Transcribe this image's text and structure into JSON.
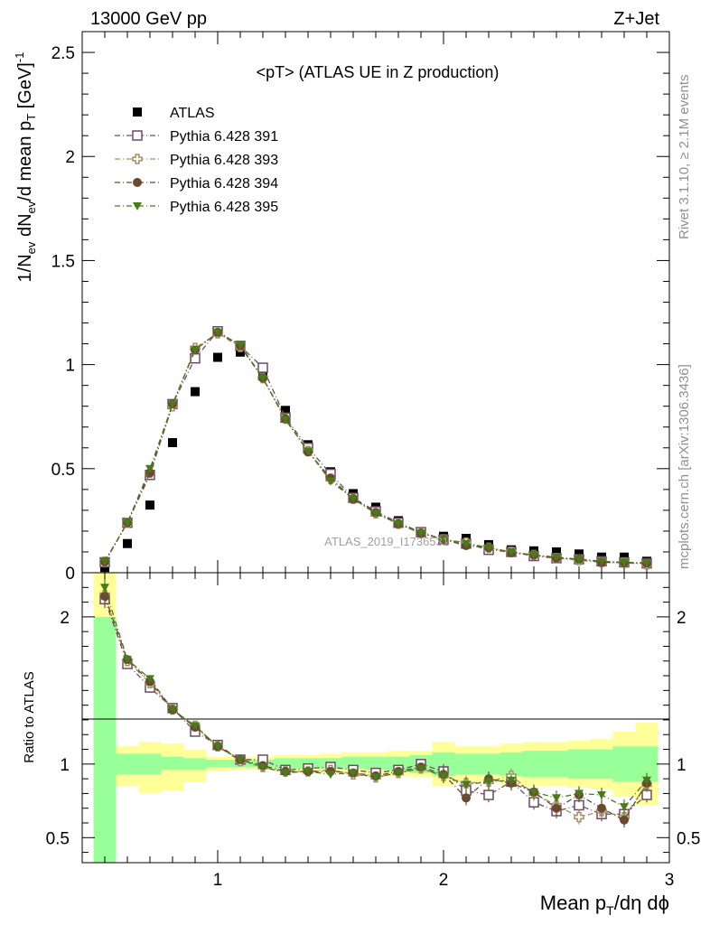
{
  "header": {
    "left": "13000 GeV pp",
    "right": "Z+Jet"
  },
  "side_labels": {
    "top": "Rivet 3.1.10, ≥ 2.1M events",
    "bottom": "mcplots.cern.ch [arXiv:1306.3436]"
  },
  "watermark": "ATLAS_2019_I1736531",
  "chart_data": [
    {
      "type": "scatter",
      "title": "<pT> (ATLAS UE in Z production)",
      "ylabel": "1/N_ev dN_ev/d mean p_T [GeV]^-1",
      "xlim": [
        0.4,
        3.0
      ],
      "ylim": [
        0,
        2.6
      ],
      "yticks": [
        "0",
        "0.5",
        "1",
        "1.5",
        "2",
        "2.5"
      ],
      "legend_position": "top-left",
      "x": [
        0.5,
        0.6,
        0.7,
        0.8,
        0.9,
        1.0,
        1.1,
        1.2,
        1.3,
        1.4,
        1.5,
        1.6,
        1.7,
        1.8,
        1.9,
        2.0,
        2.1,
        2.2,
        2.3,
        2.4,
        2.5,
        2.6,
        2.7,
        2.8,
        2.9
      ],
      "series": [
        {
          "name": "ATLAS",
          "marker": "square-filled",
          "color": "#000000",
          "values": [
            0.025,
            0.14,
            0.325,
            0.625,
            0.87,
            1.035,
            1.06,
            0.96,
            0.78,
            0.615,
            0.485,
            0.38,
            0.315,
            0.25,
            0.195,
            0.175,
            0.165,
            0.135,
            0.11,
            0.105,
            0.1,
            0.09,
            0.075,
            0.075,
            0.055
          ]
        },
        {
          "name": "Pythia 6.428 391",
          "marker": "square-open",
          "color": "#6e4a66",
          "values": [
            0.05,
            0.24,
            0.47,
            0.81,
            1.03,
            1.16,
            1.09,
            0.985,
            0.745,
            0.6,
            0.475,
            0.36,
            0.295,
            0.24,
            0.195,
            0.16,
            0.14,
            0.11,
            0.1,
            0.08,
            0.07,
            0.065,
            0.055,
            0.05,
            0.045
          ]
        },
        {
          "name": "Pythia 6.428 393",
          "marker": "cross-open",
          "color": "#a09060",
          "values": [
            0.053,
            0.24,
            0.48,
            0.8,
            1.08,
            1.15,
            1.085,
            0.935,
            0.74,
            0.585,
            0.45,
            0.355,
            0.285,
            0.235,
            0.19,
            0.16,
            0.145,
            0.12,
            0.1,
            0.085,
            0.07,
            0.06,
            0.05,
            0.048,
            0.04
          ]
        },
        {
          "name": "Pythia 6.428 394",
          "marker": "circle-filled",
          "color": "#6a4a2e",
          "values": [
            0.052,
            0.24,
            0.48,
            0.81,
            1.07,
            1.155,
            1.09,
            0.935,
            0.74,
            0.58,
            0.455,
            0.355,
            0.29,
            0.235,
            0.19,
            0.16,
            0.13,
            0.12,
            0.095,
            0.085,
            0.07,
            0.065,
            0.05,
            0.048,
            0.045
          ]
        },
        {
          "name": "Pythia 6.428 395",
          "marker": "triangle-down-filled",
          "color": "#4b7a1a",
          "values": [
            0.055,
            0.24,
            0.5,
            0.81,
            1.07,
            1.155,
            1.095,
            0.935,
            0.735,
            0.585,
            0.44,
            0.355,
            0.285,
            0.235,
            0.19,
            0.16,
            0.14,
            0.12,
            0.1,
            0.085,
            0.075,
            0.065,
            0.055,
            0.05,
            0.048
          ]
        }
      ]
    },
    {
      "type": "scatter",
      "title": "",
      "xlabel": "Mean p_T/dη dϕ",
      "ylabel": "Ratio to ATLAS",
      "xlim": [
        0.4,
        3.0
      ],
      "ylim": [
        0.33,
        2.3
      ],
      "xticks": [
        "1",
        "2",
        "3"
      ],
      "yticks": [
        "0.5",
        "1",
        "2"
      ],
      "x": [
        0.5,
        0.6,
        0.7,
        0.8,
        0.9,
        1.0,
        1.1,
        1.2,
        1.3,
        1.4,
        1.5,
        1.6,
        1.7,
        1.8,
        1.9,
        2.0,
        2.1,
        2.2,
        2.3,
        2.4,
        2.5,
        2.6,
        2.7,
        2.8,
        2.9
      ],
      "bands": {
        "inner_color": "#99ff99",
        "outer_color": "#ffff99",
        "inner_low": [
          0.33,
          0.93,
          0.93,
          0.96,
          0.96,
          0.98,
          0.98,
          0.98,
          0.97,
          0.97,
          0.97,
          0.97,
          0.96,
          0.95,
          0.94,
          0.92,
          0.93,
          0.93,
          0.92,
          0.91,
          0.91,
          0.9,
          0.9,
          0.88,
          0.88
        ],
        "inner_high": [
          2.0,
          1.07,
          1.07,
          1.05,
          1.04,
          1.03,
          1.03,
          1.03,
          1.04,
          1.04,
          1.04,
          1.05,
          1.05,
          1.05,
          1.06,
          1.08,
          1.07,
          1.07,
          1.08,
          1.09,
          1.09,
          1.1,
          1.1,
          1.12,
          1.12
        ],
        "outer_low": [
          0.33,
          0.85,
          0.8,
          0.82,
          0.88,
          0.95,
          0.96,
          0.96,
          0.95,
          0.94,
          0.94,
          0.94,
          0.92,
          0.92,
          0.91,
          0.85,
          0.88,
          0.88,
          0.86,
          0.85,
          0.85,
          0.84,
          0.83,
          0.78,
          0.72
        ],
        "outer_high": [
          2.3,
          1.12,
          1.15,
          1.14,
          1.1,
          1.05,
          1.05,
          1.05,
          1.06,
          1.06,
          1.07,
          1.08,
          1.08,
          1.09,
          1.09,
          1.15,
          1.12,
          1.12,
          1.14,
          1.15,
          1.15,
          1.16,
          1.17,
          1.22,
          1.28
        ]
      },
      "series": [
        {
          "name": "Pythia 6.428 391",
          "marker": "square-open",
          "color": "#6e4a66",
          "values": [
            2.12,
            1.68,
            1.52,
            1.38,
            1.22,
            1.13,
            1.03,
            1.03,
            0.96,
            0.97,
            0.98,
            0.96,
            0.94,
            0.96,
            1.0,
            0.95,
            0.82,
            0.79,
            0.88,
            0.74,
            0.68,
            0.72,
            0.66,
            0.66,
            0.79
          ]
        },
        {
          "name": "Pythia 6.428 393",
          "marker": "cross-open",
          "color": "#a09060",
          "values": [
            2.15,
            1.7,
            1.55,
            1.37,
            1.26,
            1.12,
            1.02,
            0.98,
            0.95,
            0.95,
            0.96,
            0.93,
            0.91,
            0.94,
            0.97,
            0.92,
            0.87,
            0.88,
            0.92,
            0.8,
            0.72,
            0.64,
            0.68,
            0.64,
            0.86
          ]
        },
        {
          "name": "Pythia 6.428 394",
          "marker": "circle-filled",
          "color": "#6a4a2e",
          "values": [
            2.14,
            1.71,
            1.56,
            1.37,
            1.25,
            1.12,
            1.03,
            0.99,
            0.95,
            0.95,
            0.95,
            0.94,
            0.92,
            0.95,
            0.98,
            0.93,
            0.77,
            0.9,
            0.87,
            0.81,
            0.7,
            0.79,
            0.7,
            0.62,
            0.87
          ]
        },
        {
          "name": "Pythia 6.428 395",
          "marker": "triangle-down-filled",
          "color": "#4b7a1a",
          "values": [
            2.2,
            1.71,
            1.58,
            1.37,
            1.26,
            1.12,
            1.03,
            0.98,
            0.94,
            0.95,
            0.93,
            0.94,
            0.91,
            0.94,
            0.97,
            0.92,
            0.86,
            0.88,
            0.89,
            0.81,
            0.77,
            0.8,
            0.79,
            0.71,
            0.89
          ]
        }
      ]
    }
  ]
}
